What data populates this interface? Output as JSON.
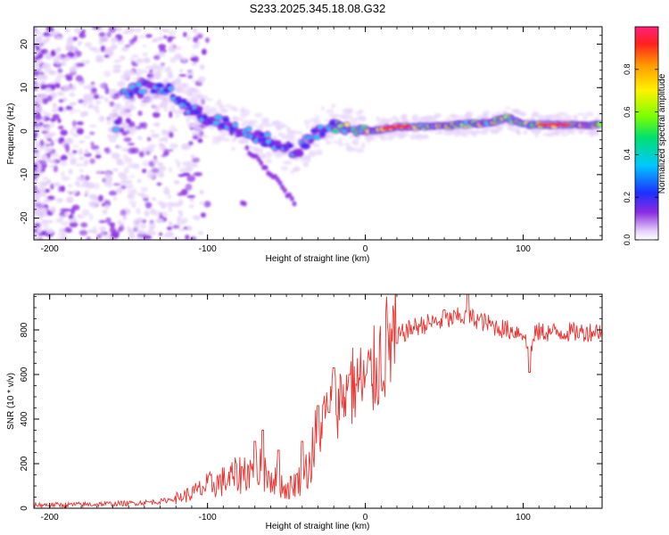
{
  "title": "S233.2025.345.18.08.G32",
  "chart_data": [
    {
      "type": "heatmap",
      "xlabel": "Height of straight line (km)",
      "ylabel": "Frequency (Hz)",
      "xlim": [
        -210,
        150
      ],
      "ylim": [
        -25,
        24
      ],
      "xticks": [
        -200,
        -100,
        0,
        100
      ],
      "yticks": [
        -20,
        -10,
        0,
        10,
        20
      ],
      "colorbar": {
        "label": "Normalized spectral amplitude",
        "range": [
          0,
          1
        ],
        "ticks": [
          0.0,
          0.2,
          0.4,
          0.6,
          0.8
        ],
        "tick_labels": [
          "0.0",
          "0.2",
          "0.4",
          "0.6",
          "0.8"
        ]
      },
      "ridge": {
        "description_points_km_hz": [
          [
            -155,
            8
          ],
          [
            -140,
            10
          ],
          [
            -125,
            10
          ],
          [
            -115,
            6
          ],
          [
            -100,
            3
          ],
          [
            -85,
            1
          ],
          [
            -70,
            -1
          ],
          [
            -55,
            -3
          ],
          [
            -45,
            -5
          ],
          [
            -35,
            -2
          ],
          [
            -25,
            1
          ],
          [
            -15,
            1
          ],
          [
            0,
            0
          ],
          [
            20,
            1
          ],
          [
            40,
            1
          ],
          [
            60,
            1.5
          ],
          [
            80,
            2
          ],
          [
            90,
            3
          ],
          [
            100,
            1.5
          ],
          [
            120,
            1.5
          ],
          [
            150,
            1.5
          ]
        ],
        "branch_points_km_hz": [
          [
            -75,
            -4
          ],
          [
            -62,
            -9
          ],
          [
            -52,
            -13
          ],
          [
            -45,
            -17
          ]
        ]
      }
    },
    {
      "type": "line",
      "xlabel": "Height of straight line (km)",
      "ylabel": "SNR (10 * v/v)",
      "xlim": [
        -210,
        150
      ],
      "ylim": [
        0,
        960
      ],
      "xticks": [
        -200,
        -100,
        0,
        100
      ],
      "yticks": [
        0,
        200,
        400,
        600,
        800
      ],
      "series": [
        {
          "name": "SNR",
          "color": "#e8332f",
          "x": [
            -210,
            -190,
            -170,
            -150,
            -130,
            -120,
            -110,
            -100,
            -90,
            -80,
            -75,
            -70,
            -65,
            -60,
            -55,
            -50,
            -45,
            -40,
            -35,
            -30,
            -25,
            -20,
            -15,
            -10,
            -5,
            0,
            5,
            10,
            15,
            20,
            30,
            40,
            50,
            60,
            70,
            80,
            90,
            100,
            104,
            108,
            120,
            140,
            150
          ],
          "y": [
            15,
            15,
            18,
            22,
            30,
            45,
            65,
            100,
            120,
            150,
            170,
            160,
            180,
            140,
            120,
            80,
            110,
            140,
            200,
            330,
            420,
            460,
            500,
            540,
            560,
            560,
            600,
            680,
            740,
            770,
            810,
            830,
            840,
            860,
            850,
            820,
            800,
            790,
            680,
            790,
            790,
            790,
            800
          ]
        }
      ],
      "spikes": [
        [
          -70,
          300
        ],
        [
          -65,
          350
        ],
        [
          -55,
          260
        ],
        [
          -40,
          300
        ],
        [
          -30,
          460
        ],
        [
          -23,
          430
        ],
        [
          -20,
          630
        ],
        [
          -10,
          600
        ],
        [
          20,
          740
        ],
        [
          50,
          890
        ],
        [
          65,
          960
        ],
        [
          104,
          610
        ]
      ]
    }
  ]
}
